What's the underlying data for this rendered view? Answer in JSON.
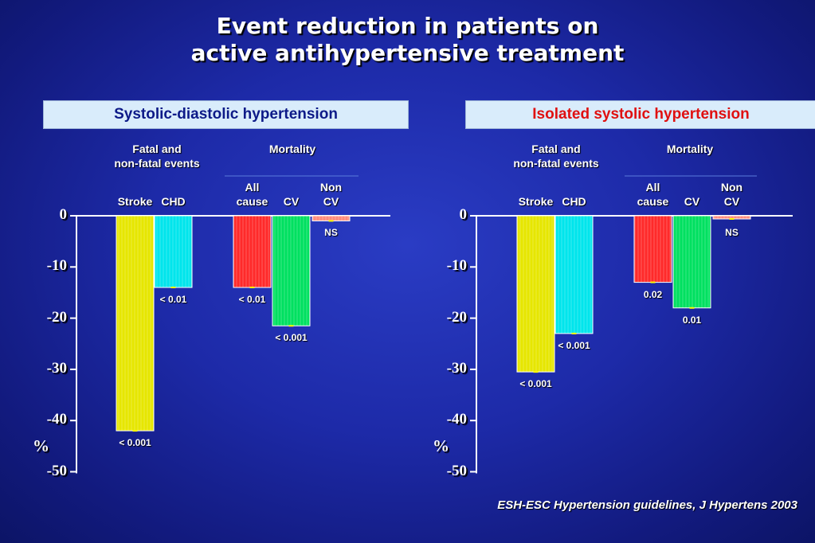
{
  "title_line1": "Event reduction in patients on",
  "title_line2": "active antihypertensive treatment",
  "source": "ESH-ESC Hypertension guidelines, J Hypertens 2003",
  "colors": {
    "stroke": "#e6e600",
    "chd": "#00e5ec",
    "all_cause": "#ff2a2a",
    "cv": "#00e060",
    "non_cv": "#ff8c7c"
  },
  "chart_data": [
    {
      "type": "bar",
      "title": "Systolic-diastolic hypertension",
      "ylabel": "%",
      "ylim": [
        -50,
        0
      ],
      "yticks": [
        "0",
        "-10",
        "-20",
        "-30",
        "-40",
        "-50"
      ],
      "group_labels": [
        "Fatal and\nnon-fatal events",
        "Mortality"
      ],
      "categories": [
        "Stroke",
        "CHD",
        "All\ncause",
        "CV",
        "Non\nCV"
      ],
      "values": [
        -42,
        -14,
        -14,
        -21.5,
        -1
      ],
      "p_values": [
        "< 0.001",
        "< 0.01",
        "< 0.01",
        "< 0.001",
        "NS"
      ]
    },
    {
      "type": "bar",
      "title": "Isolated systolic hypertension",
      "ylabel": "%",
      "ylim": [
        -50,
        0
      ],
      "yticks": [
        "0",
        "-10",
        "-20",
        "-30",
        "-40",
        "-50"
      ],
      "group_labels": [
        "Fatal and\nnon-fatal events",
        "Mortality"
      ],
      "categories": [
        "Stroke",
        "CHD",
        "All\ncause",
        "CV",
        "Non\nCV"
      ],
      "values": [
        -30.5,
        -23,
        -13,
        -18,
        -0.5
      ],
      "p_values": [
        "< 0.001",
        "< 0.001",
        "0.02",
        "0.01",
        "NS"
      ]
    }
  ]
}
